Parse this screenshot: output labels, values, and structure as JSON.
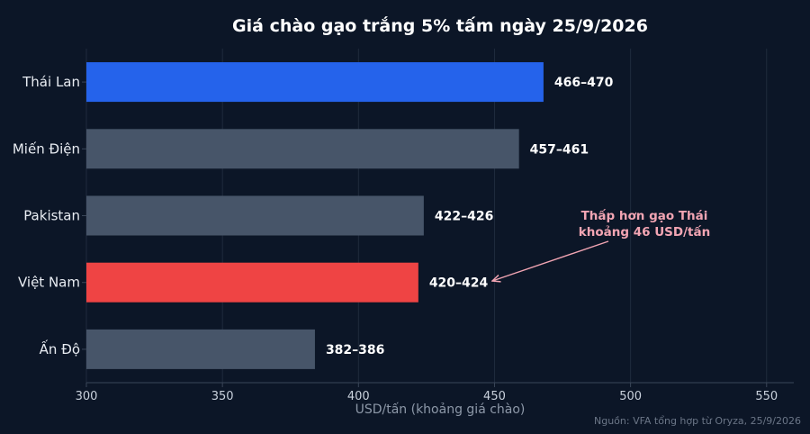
{
  "chart_data": {
    "type": "bar",
    "orientation": "horizontal",
    "title": "Giá chào gạo trắng 5% tấm ngày 25/9/2026",
    "xlabel": "USD/tấn (khoảng giá chào)",
    "ylabel": "",
    "xlim": [
      300,
      560
    ],
    "xticks": [
      300,
      350,
      400,
      450,
      500,
      550
    ],
    "grid": true,
    "categories": [
      "Thái Lan",
      "Miến Điện",
      "Pakistan",
      "Việt Nam",
      "Ấn Độ"
    ],
    "values": [
      468,
      459,
      424,
      422,
      384
    ],
    "ranges": [
      [
        466,
        470
      ],
      [
        457,
        461
      ],
      [
        422,
        426
      ],
      [
        420,
        424
      ],
      [
        382,
        386
      ]
    ],
    "data_labels": [
      "466–470",
      "457–461",
      "422–426",
      "420–424",
      "382–386"
    ],
    "colors": {
      "Thái Lan": "#2563eb",
      "Miến Điện": "#475569",
      "Pakistan": "#475569",
      "Việt Nam": "#ef4444",
      "Ấn Độ": "#475569"
    },
    "annotation": {
      "lines": [
        "Thấp hơn gạo Thái",
        "khoảng 46 USD/tấn"
      ],
      "color": "#f2a5b3",
      "points_to": "Việt Nam"
    },
    "source": "Nguồn: VFA tổng hợp từ Oryza, 25/9/2026"
  }
}
